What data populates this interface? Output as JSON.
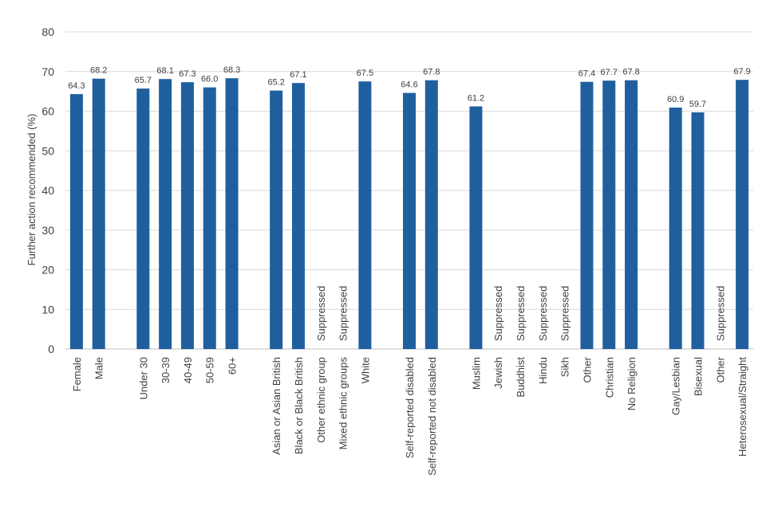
{
  "chart_data": {
    "type": "bar",
    "title": "",
    "xlabel": "",
    "ylabel": "Further action recommended (%)",
    "ylim": [
      0,
      80
    ],
    "yticks": [
      0,
      10,
      20,
      30,
      40,
      50,
      60,
      70,
      80
    ],
    "grid": true,
    "color": "#1f5f9e",
    "categories": [
      "Female",
      "Male",
      "",
      "Under 30",
      "30-39",
      "40-49",
      "50-59",
      "60+",
      "",
      "Asian or Asian British",
      "Black or Black British",
      "Other ethnic group",
      "Mixed ethnic groups",
      "White",
      "",
      "Self-reported disabled",
      "Self-reported not disabled",
      "",
      "Muslim",
      "Jewish",
      "Buddhist",
      "Hindu",
      "Sikh",
      "Other",
      "Christian",
      "No Religion",
      "",
      "Gay/Lesbian",
      "Bisexual",
      "Other",
      "Heterosexual/Straight"
    ],
    "values": [
      64.3,
      68.2,
      null,
      65.7,
      68.1,
      67.3,
      66.0,
      68.3,
      null,
      65.2,
      67.1,
      null,
      null,
      67.5,
      null,
      64.6,
      67.8,
      null,
      61.2,
      null,
      null,
      null,
      null,
      67.4,
      67.7,
      67.8,
      null,
      60.9,
      59.7,
      null,
      67.9
    ],
    "value_labels": [
      "64.3",
      "68.2",
      "",
      "65.7",
      "68.1",
      "67.3",
      "66.0",
      "68.3",
      "",
      "65.2",
      "67.1",
      "",
      "",
      "67.5",
      "",
      "64.6",
      "67.8",
      "",
      "61.2",
      "",
      "",
      "",
      "",
      "67.4",
      "67.7",
      "67.8",
      "",
      "60.9",
      "59.7",
      "",
      "67.9"
    ],
    "suppressed_text": "Suppressed",
    "suppressed": [
      false,
      false,
      false,
      false,
      false,
      false,
      false,
      false,
      false,
      false,
      false,
      true,
      true,
      false,
      false,
      false,
      false,
      false,
      false,
      true,
      true,
      true,
      true,
      false,
      false,
      false,
      false,
      false,
      false,
      true,
      false
    ]
  }
}
